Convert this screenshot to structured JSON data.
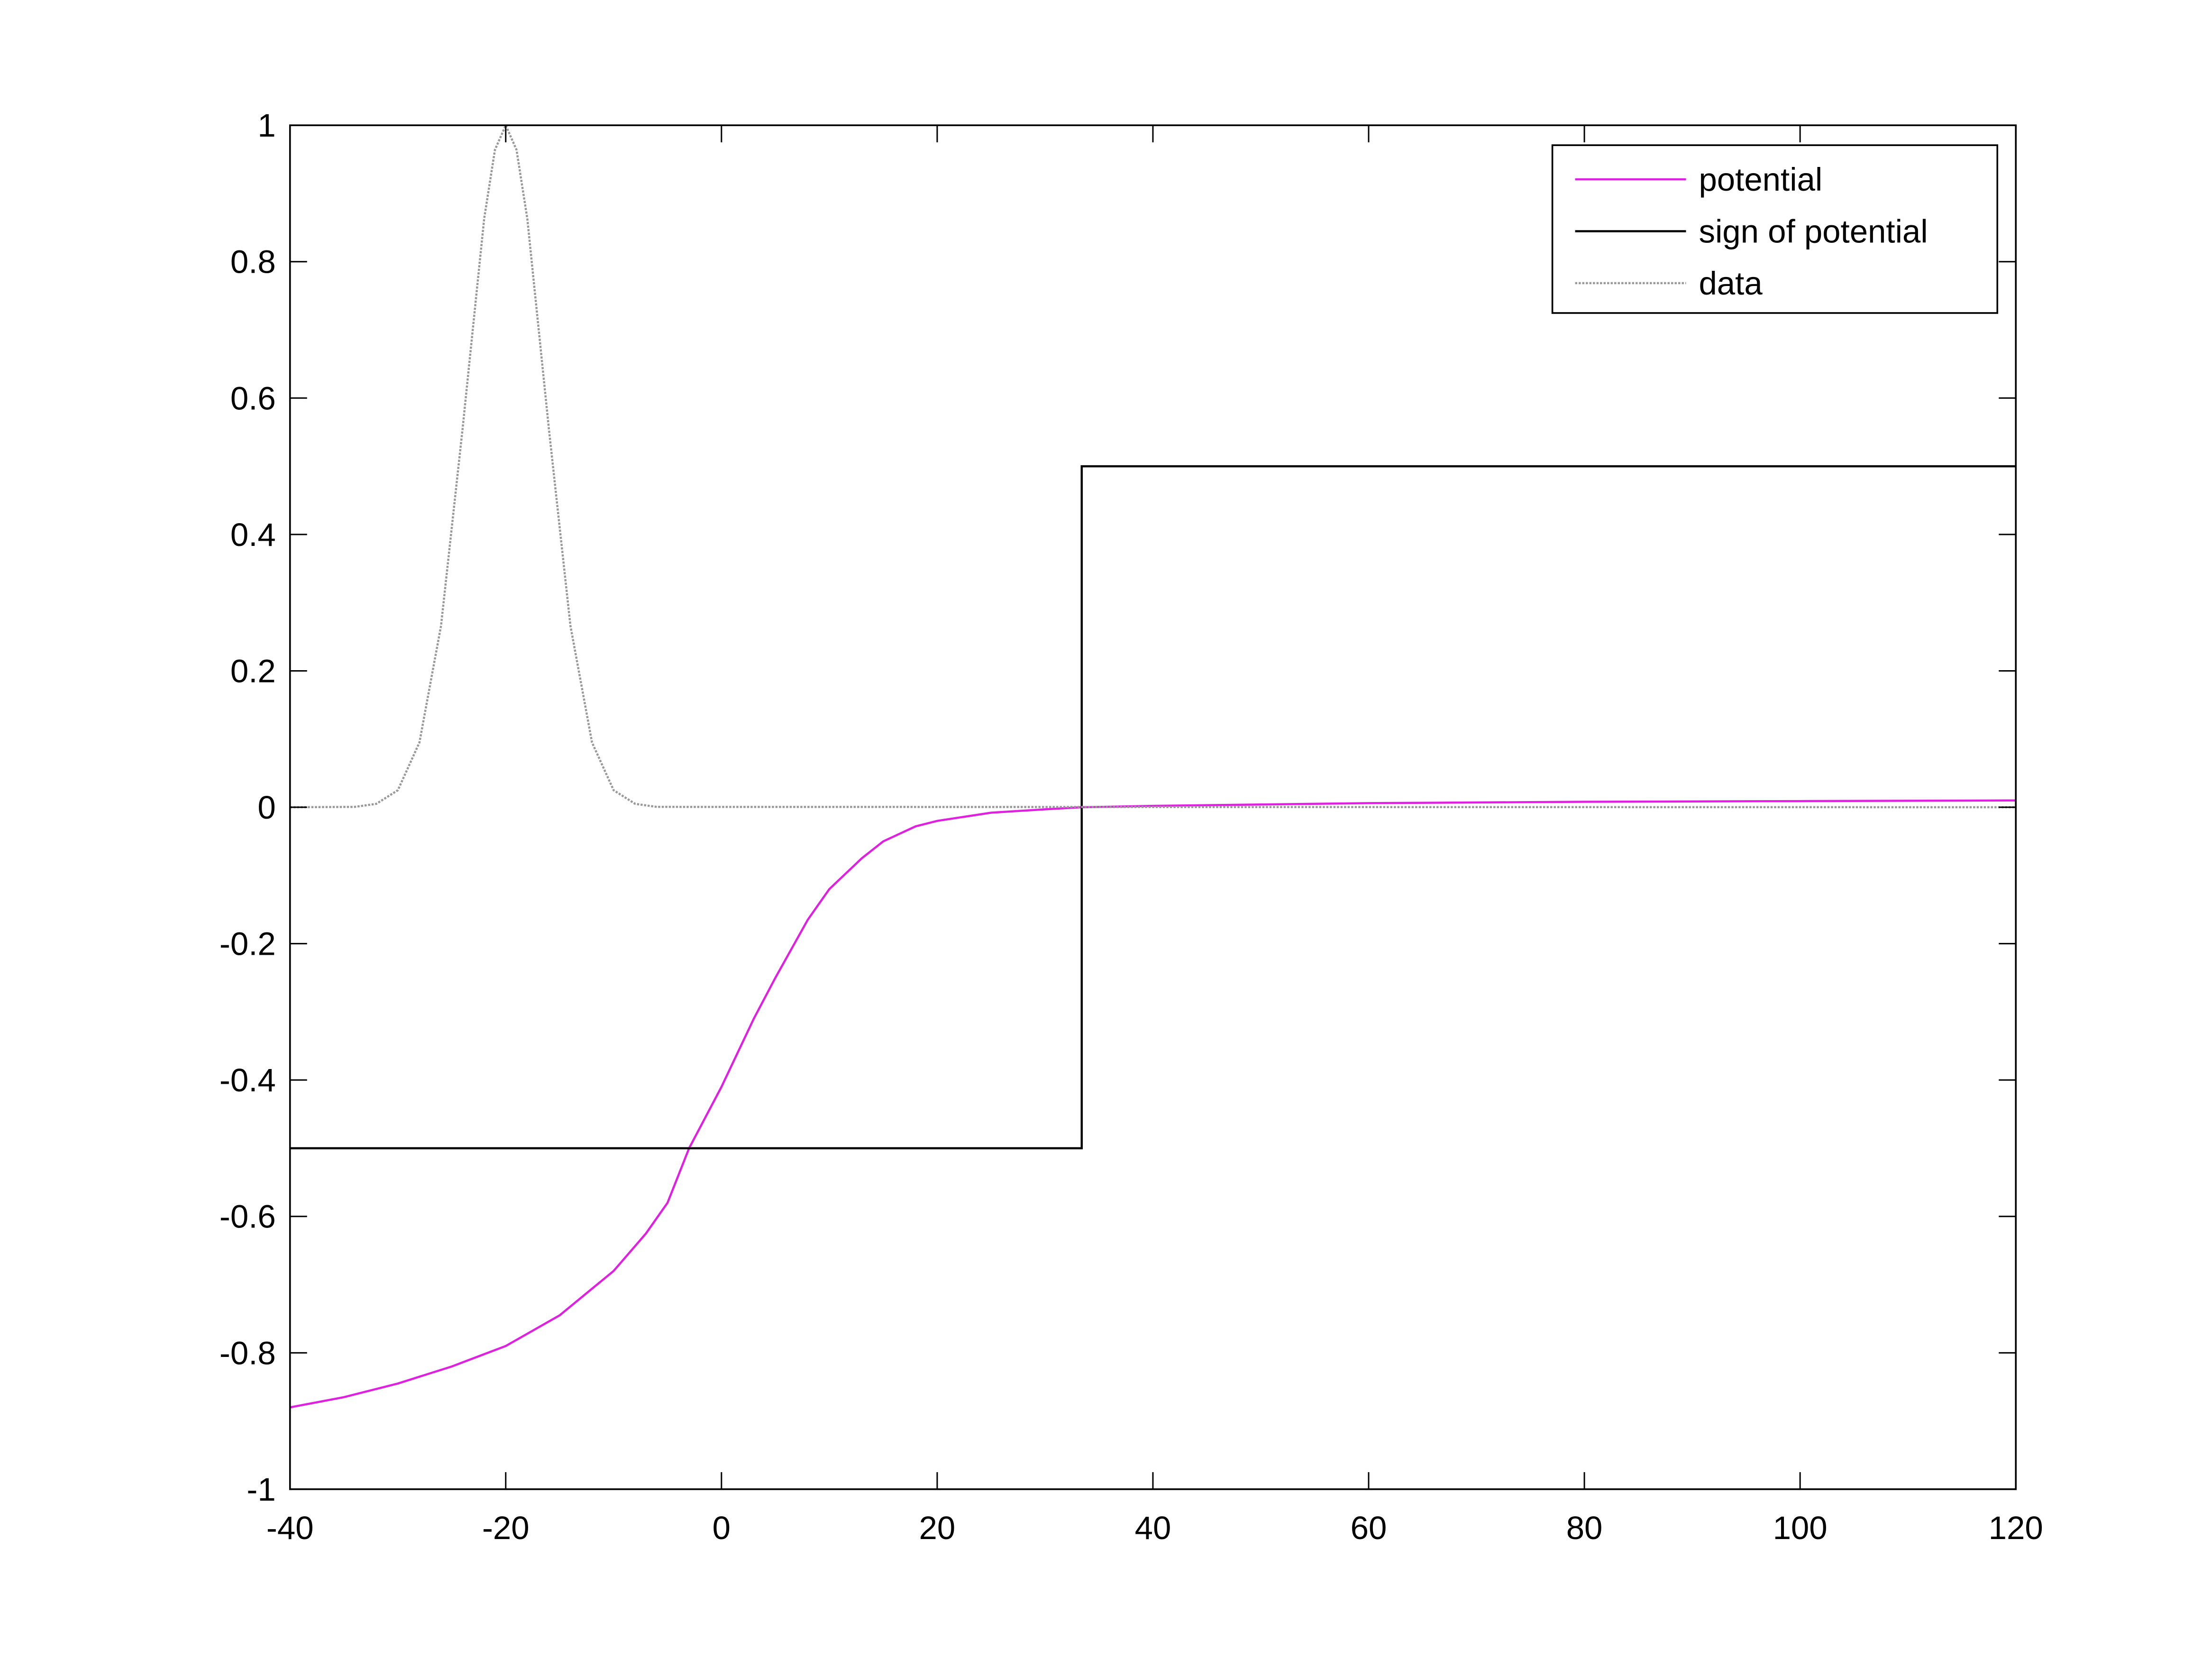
{
  "chart_data": {
    "type": "line",
    "xlim": [
      -40,
      120
    ],
    "ylim": [
      -1,
      1
    ],
    "xticks": [
      -40,
      -20,
      0,
      20,
      40,
      60,
      80,
      100,
      120
    ],
    "yticks": [
      -1,
      -0.8,
      -0.6,
      -0.4,
      -0.2,
      0,
      0.2,
      0.4,
      0.6,
      0.8,
      1
    ],
    "legend": "upper right",
    "series": [
      {
        "name": "potential",
        "color": "#e020e0",
        "style": "solid",
        "x": [
          -40,
          -35,
          -30,
          -25,
          -20,
          -15,
          -10,
          -7,
          -5,
          -3,
          0,
          3,
          5,
          8,
          10,
          13,
          15,
          18,
          20,
          25,
          30,
          33.4,
          40,
          60,
          80,
          100,
          120
        ],
        "values": [
          -0.88,
          -0.865,
          -0.845,
          -0.82,
          -0.79,
          -0.745,
          -0.68,
          -0.625,
          -0.58,
          -0.5,
          -0.41,
          -0.31,
          -0.25,
          -0.165,
          -0.12,
          -0.075,
          -0.05,
          -0.028,
          -0.02,
          -0.008,
          -0.003,
          0,
          0.002,
          0.006,
          0.008,
          0.009,
          0.01
        ]
      },
      {
        "name": "sign of potential",
        "color": "#000000",
        "style": "solid",
        "x": [
          -40,
          33.4,
          33.4,
          120
        ],
        "values": [
          -0.5,
          -0.5,
          0.5,
          0.5
        ]
      },
      {
        "name": "data",
        "color": "#999999",
        "style": "dotted",
        "x": [
          -40,
          -34,
          -32,
          -30,
          -28,
          -26,
          -24,
          -22,
          -21,
          -20,
          -19,
          -18,
          -16,
          -14,
          -12,
          -10,
          -8,
          -6,
          120
        ],
        "values": [
          0,
          0.0005,
          0.005,
          0.025,
          0.095,
          0.266,
          0.555,
          0.863,
          0.964,
          1,
          0.964,
          0.863,
          0.555,
          0.266,
          0.095,
          0.025,
          0.005,
          0.0005,
          0
        ]
      }
    ]
  }
}
